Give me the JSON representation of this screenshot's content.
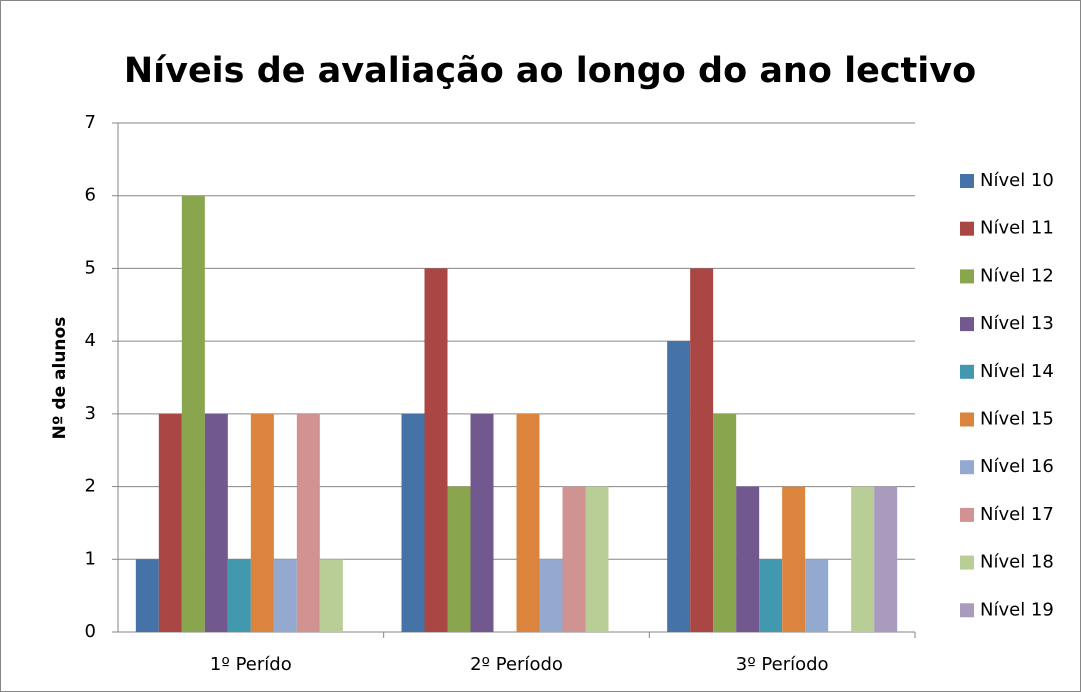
{
  "chart_data": {
    "type": "bar",
    "title": "Níveis de avaliação ao longo do ano lectivo",
    "y_label": "Nº de alunos",
    "categories": [
      "1º Perído",
      "2º Período",
      "3º Período"
    ],
    "series": [
      {
        "name": "Nível 10",
        "color": "#4572A7",
        "values": [
          1,
          3,
          4
        ]
      },
      {
        "name": "Nível 11",
        "color": "#AA4643",
        "values": [
          3,
          5,
          5
        ]
      },
      {
        "name": "Nível 12",
        "color": "#89A54E",
        "values": [
          6,
          2,
          3
        ]
      },
      {
        "name": "Nível 13",
        "color": "#71588F",
        "values": [
          3,
          3,
          2
        ]
      },
      {
        "name": "Nível 14",
        "color": "#4198AF",
        "values": [
          1,
          0,
          1
        ]
      },
      {
        "name": "Nível 15",
        "color": "#DB843D",
        "values": [
          3,
          3,
          2
        ]
      },
      {
        "name": "Nível 16",
        "color": "#93A9CF",
        "values": [
          1,
          1,
          1
        ]
      },
      {
        "name": "Nível 17",
        "color": "#D19392",
        "values": [
          3,
          2,
          0
        ]
      },
      {
        "name": "Nível 18",
        "color": "#B9CD96",
        "values": [
          1,
          2,
          2
        ]
      },
      {
        "name": "Nível 19",
        "color": "#A99BBD",
        "values": [
          0,
          0,
          2
        ]
      }
    ],
    "ylim": [
      0,
      7
    ],
    "yticks": [
      0,
      1,
      2,
      3,
      4,
      5,
      6,
      7
    ],
    "grid": true,
    "legend": "right"
  }
}
